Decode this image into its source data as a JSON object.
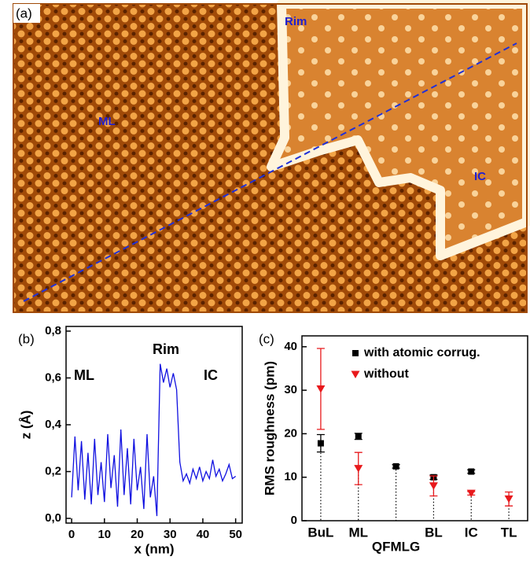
{
  "panel_a": {
    "label": "(a)",
    "annotations": [
      "Rim",
      "ML",
      "IC"
    ]
  },
  "chart_data": [
    {
      "type": "line",
      "panel_label": "(b)",
      "x_label": "x (nm)",
      "y_label": "z (Å)",
      "annotations": [
        "ML",
        "Rim",
        "IC"
      ],
      "x": [
        0,
        1,
        2,
        3,
        4,
        5,
        6,
        7,
        8,
        9,
        10,
        11,
        12,
        13,
        14,
        15,
        16,
        17,
        18,
        19,
        20,
        21,
        22,
        23,
        24,
        25,
        26,
        27,
        28,
        29,
        30,
        31,
        32,
        33,
        34,
        35,
        36,
        37,
        38,
        39,
        40,
        41,
        42,
        43,
        44,
        45,
        46,
        47,
        48,
        49,
        50
      ],
      "values": [
        0.09,
        0.35,
        0.12,
        0.33,
        0.08,
        0.28,
        0.06,
        0.34,
        0.1,
        0.24,
        0.07,
        0.36,
        0.13,
        0.27,
        0.05,
        0.38,
        0.1,
        0.3,
        0.06,
        0.34,
        0.12,
        0.22,
        0.04,
        0.36,
        0.09,
        0.18,
        0.01,
        0.66,
        0.58,
        0.64,
        0.56,
        0.62,
        0.55,
        0.24,
        0.16,
        0.19,
        0.15,
        0.21,
        0.17,
        0.22,
        0.16,
        0.2,
        0.17,
        0.25,
        0.18,
        0.21,
        0.16,
        0.19,
        0.23,
        0.17,
        0.18
      ],
      "color": "#1010e0",
      "xlim": [
        -1.7,
        52
      ],
      "xticks": [
        0,
        10,
        20,
        30,
        40,
        50
      ],
      "ylim": [
        -0.02,
        0.82
      ],
      "yticks": [
        {
          "value": 0,
          "label": "0,0"
        },
        {
          "value": 0.2,
          "label": "0,2"
        },
        {
          "value": 0.4,
          "label": "0,4"
        },
        {
          "value": 0.6,
          "label": "0,6"
        },
        {
          "value": 0.8,
          "label": "0,8"
        }
      ]
    },
    {
      "type": "scatter",
      "panel_label": "(c)",
      "y_label": "RMS roughness (pm)",
      "categories": [
        "BuL",
        "ML",
        "QFMLG",
        "BL",
        "IC",
        "TL"
      ],
      "series": [
        {
          "name": "with atomic corrug.",
          "color": "#000000",
          "marker": "square",
          "values": [
            17.8,
            19.4,
            12.5,
            10,
            11.3,
            null
          ],
          "errors": [
            2,
            0.7,
            0.4,
            0.5,
            0.4,
            null
          ]
        },
        {
          "name": "without",
          "color": "#e8191c",
          "marker": "triangle",
          "values": [
            30.3,
            12,
            null,
            8,
            6.3,
            5
          ],
          "errors": [
            9.3,
            3.7,
            null,
            2.3,
            0.4,
            1.6
          ]
        }
      ],
      "ylim": [
        0,
        42.5
      ],
      "yticks": [
        0,
        10,
        20,
        30,
        40
      ],
      "legend": "top-right"
    }
  ]
}
